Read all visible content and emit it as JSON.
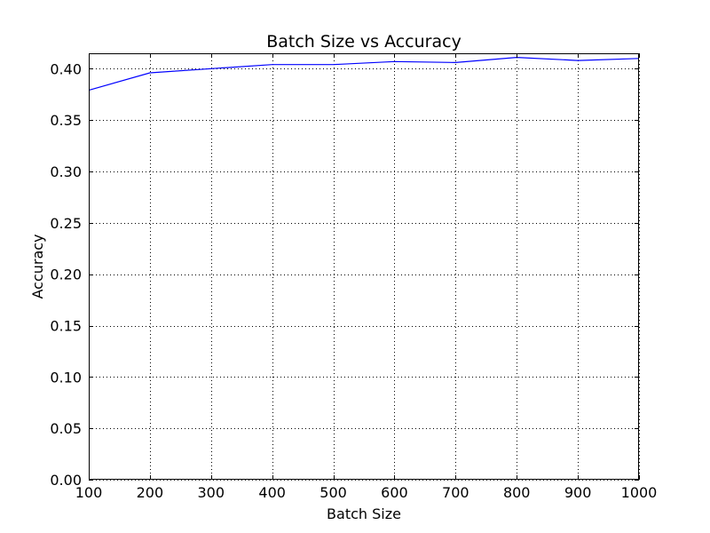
{
  "chart_data": {
    "type": "line",
    "title": "Batch Size vs Accuracy",
    "xlabel": "Batch Size",
    "ylabel": "Accuracy",
    "xlim": [
      100,
      1000
    ],
    "ylim": [
      0.0,
      0.415
    ],
    "xticks": [
      100,
      200,
      300,
      400,
      500,
      600,
      700,
      800,
      900,
      1000
    ],
    "xtick_labels": [
      "100",
      "200",
      "300",
      "400",
      "500",
      "600",
      "700",
      "800",
      "900",
      "1000"
    ],
    "yticks": [
      0.0,
      0.05,
      0.1,
      0.15,
      0.2,
      0.25,
      0.3,
      0.35,
      0.4
    ],
    "ytick_labels": [
      "0.00",
      "0.05",
      "0.10",
      "0.15",
      "0.20",
      "0.25",
      "0.30",
      "0.35",
      "0.40"
    ],
    "grid": true,
    "series": [
      {
        "color": "#0000ff",
        "x": [
          100,
          200,
          300,
          400,
          500,
          600,
          700,
          800,
          900,
          1000
        ],
        "y": [
          0.379,
          0.396,
          0.4,
          0.404,
          0.404,
          0.407,
          0.406,
          0.411,
          0.408,
          0.41
        ]
      }
    ]
  }
}
